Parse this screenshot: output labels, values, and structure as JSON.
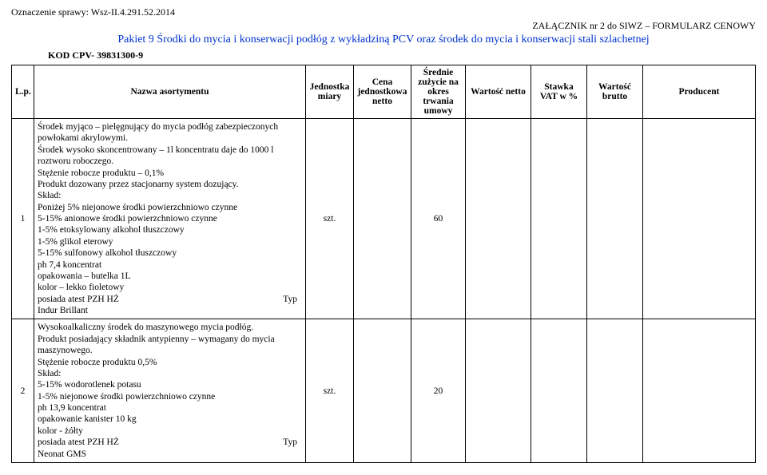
{
  "header": {
    "case_label": "Oznaczenie sprawy: Wsz-II.4.291.52.2014",
    "attachment": "ZAŁĄCZNIK nr 2 do SIWZ – FORMULARZ CENOWY",
    "pakiet": "Pakiet 9 Środki do mycia i konserwacji podłóg z wykładziną PCV oraz środek do mycia i konserwacji stali szlachetnej",
    "kod": "KOD CPV- 39831300-9"
  },
  "columns": {
    "lp": "L.p.",
    "name": "Nazwa asortymentu",
    "jm": "Jednostka miary",
    "cena": "Cena jednostkowa netto",
    "zuzycie": "Średnie zużycie na okres trwania umowy",
    "wn": "Wartość netto",
    "vat": "Stawka VAT w %",
    "wb": "Wartość brutto",
    "prod": "Producent"
  },
  "rows": [
    {
      "lp": "1",
      "name_lines": [
        "Środek myjąco – pielęgnujący do mycia podłóg zabezpieczonych powłokami akrylowymi.",
        "Środek wysoko skoncentrowany – 1l koncentratu daje do 1000 l roztworu roboczego.",
        "Stężenie robocze produktu – 0,1%",
        "Produkt dozowany przez stacjonarny system dozujący.",
        "Skład:",
        "Poniżej 5% niejonowe środki powierzchniowo czynne",
        "5-15% anionowe środki powierzchniowo czynne",
        "1-5% etoksylowany alkohol tłuszczowy",
        "1-5% glikol eterowy",
        "5-15% sulfonowy alkohol tłuszczowy",
        "ph 7,4 koncentrat",
        "opakowania – butelka 1L",
        "kolor – lekko fioletowy",
        "posiada atest PZH HŻ",
        "Indur Brillant"
      ],
      "typ_after_line": 13,
      "typ_label": "Typ",
      "jm": "szt.",
      "zuzycie": "60",
      "wn": "",
      "vat": "",
      "wb": "",
      "prod": "",
      "cena": ""
    },
    {
      "lp": "2",
      "name_lines": [
        "Wysokoalkaliczny środek do maszynowego mycia podłóg.",
        "Produkt posiadający składnik antypienny – wymagany do mycia maszynowego.",
        "Stężenie robocze produktu 0,5%",
        "Skład:",
        "5-15% wodorotlenek potasu",
        "1-5% niejonowe środki powierzchniowo czynne",
        "ph 13,9 koncentrat",
        "opakowanie kanister 10 kg",
        "kolor -  żółty",
        "posiada atest PZH HŻ",
        "Neonat GMS"
      ],
      "typ_after_line": 9,
      "typ_label": "Typ",
      "jm": "szt.",
      "zuzycie": "20",
      "wn": "",
      "vat": "",
      "wb": "",
      "prod": "",
      "cena": ""
    }
  ]
}
